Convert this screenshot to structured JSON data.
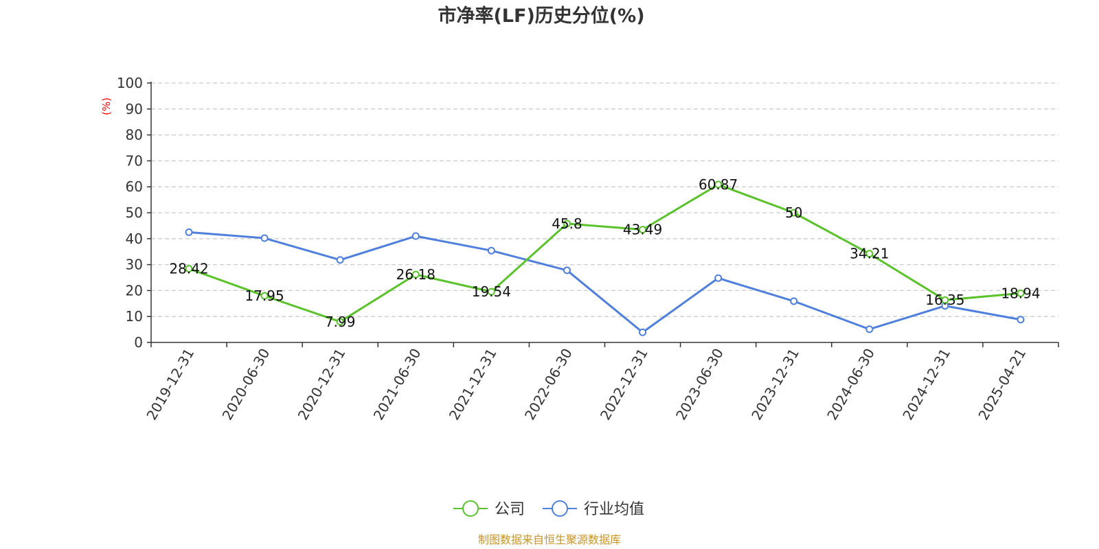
{
  "chart_data": {
    "type": "line",
    "title": "市净率(LF)历史分位(%)",
    "y_unit": "(%)",
    "ylim": [
      0,
      100
    ],
    "yticks": [
      0,
      10,
      20,
      30,
      40,
      50,
      60,
      70,
      80,
      90,
      100
    ],
    "grid": true,
    "legend_position": "bottom-center",
    "categories": [
      "2019-12-31",
      "2020-06-30",
      "2020-12-31",
      "2021-06-30",
      "2021-12-31",
      "2022-06-30",
      "2022-12-31",
      "2023-06-30",
      "2023-12-31",
      "2024-06-30",
      "2024-12-31",
      "2025-04-21"
    ],
    "series": [
      {
        "name": "公司",
        "color": "#5ac22b",
        "values": [
          28.42,
          17.95,
          7.99,
          26.18,
          19.54,
          45.8,
          43.49,
          60.87,
          50,
          34.21,
          16.35,
          18.94
        ],
        "labels": [
          "28.42",
          "17.95",
          "7.99",
          "26.18",
          "19.54",
          "45.8",
          "43.49",
          "60.87",
          "50",
          "34.21",
          "16.35",
          "18.94"
        ]
      },
      {
        "name": "行业均值",
        "color": "#4e7fdc",
        "values": [
          42.5,
          40.2,
          31.8,
          41,
          35.4,
          27.8,
          3.9,
          24.8,
          15.9,
          5.1,
          14.1,
          8.8
        ]
      }
    ]
  },
  "source_text": "制图数据来自恒生聚源数据库"
}
